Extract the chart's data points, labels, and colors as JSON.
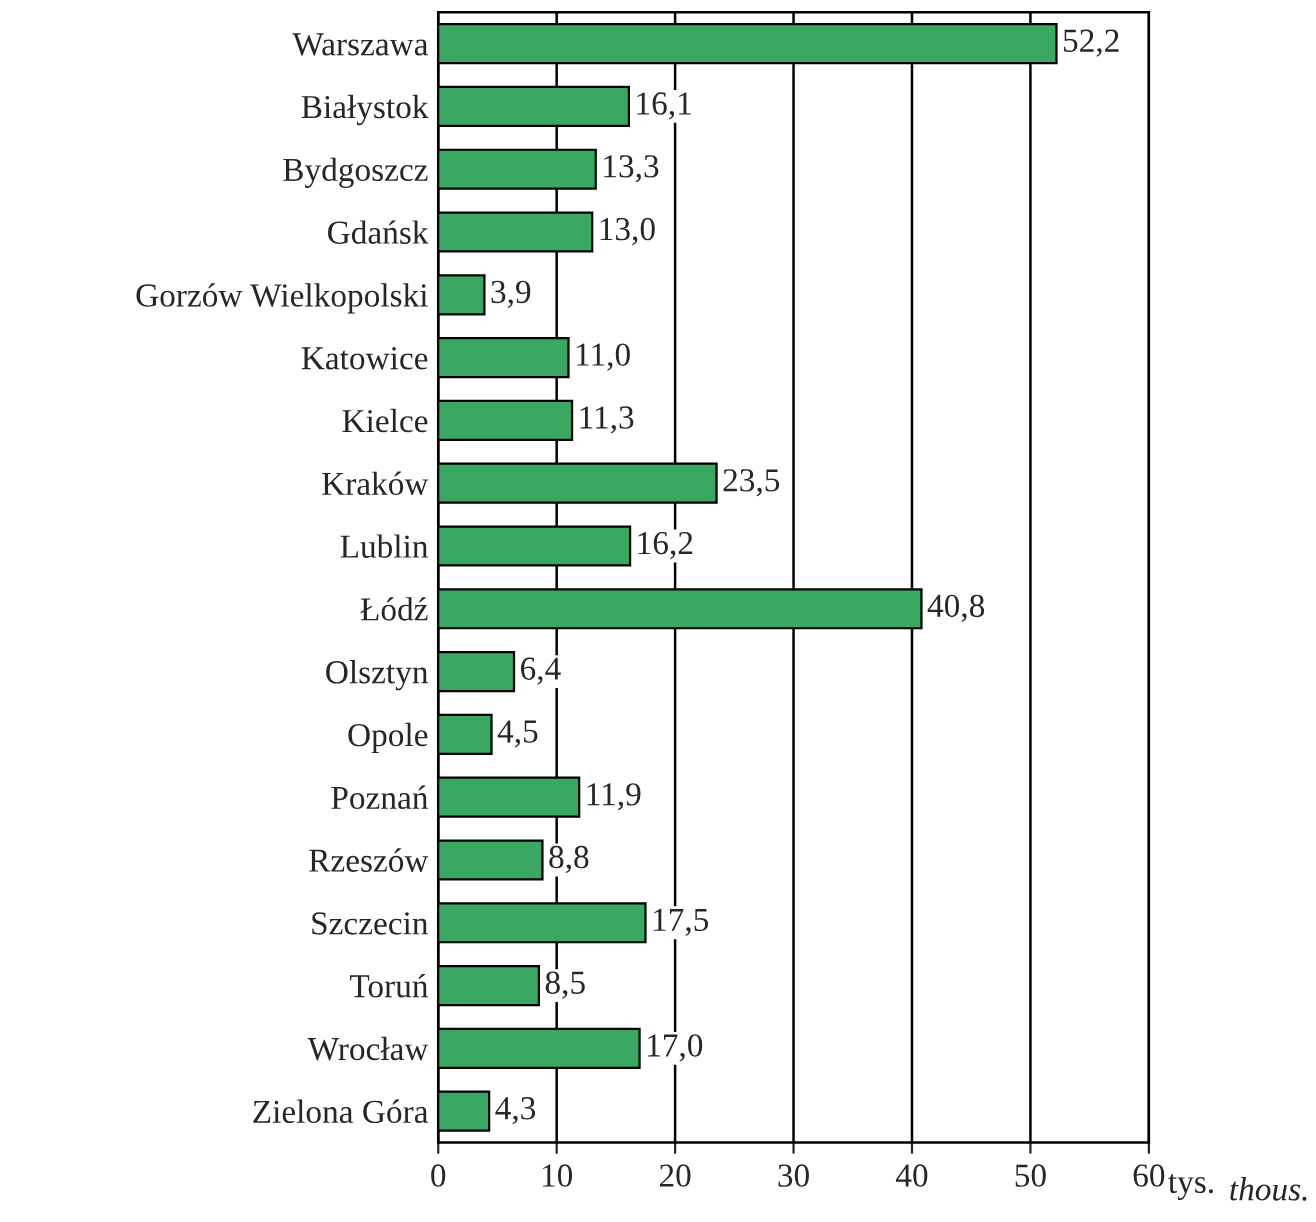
{
  "chart_data": {
    "type": "bar",
    "orientation": "horizontal",
    "xlabel": "tys.",
    "annotations": [
      "thous."
    ],
    "categories": [
      "Warszawa",
      "Białystok",
      "Bydgoszcz",
      "Gdańsk",
      "Gorzów Wielkopolski",
      "Katowice",
      "Kielce",
      "Kraków",
      "Lublin",
      "Łódź",
      "Olsztyn",
      "Opole",
      "Poznań",
      "Rzeszów",
      "Szczecin",
      "Toruń",
      "Wrocław",
      "Zielona Góra"
    ],
    "values": [
      52.2,
      16.1,
      13.3,
      13.0,
      3.9,
      11.0,
      11.3,
      23.5,
      16.2,
      40.8,
      6.4,
      4.5,
      11.9,
      8.8,
      17.5,
      8.5,
      17.0,
      4.3
    ],
    "value_labels": [
      "52,2",
      "16,1",
      "13,3",
      "13,0",
      "3,9",
      "11,0",
      "11,3",
      "23,5",
      "16,2",
      "40,8",
      "6,4",
      "4,5",
      "11,9",
      "8,8",
      "17,5",
      "8,5",
      "17,0",
      "4,3"
    ],
    "color": "#3aa862",
    "xlim": [
      0,
      60
    ],
    "xticks": [
      0,
      10,
      20,
      30,
      40,
      50,
      60
    ],
    "grid": "x",
    "legend": false
  }
}
